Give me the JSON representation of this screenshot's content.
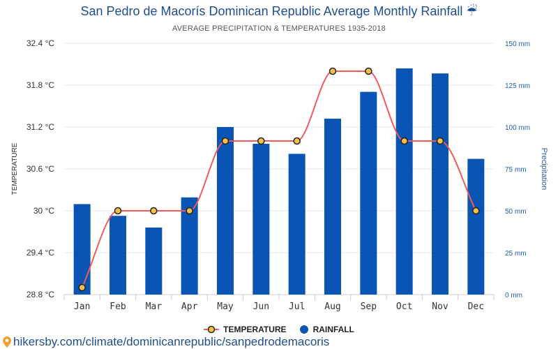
{
  "title": "San Pedro de Macorís Dominican Republic Average Monthly Rainfall ☔",
  "subtitle": "AVERAGE PRECIPITATION & TEMPERATURES 1935-2018",
  "footer_url": "hikersby.com/climate/dominicanrepublic/sanpedrodemacoris",
  "colors": {
    "rain": "#0a55b4",
    "temp_line": "#f05a5a",
    "marker": "#f7c04a",
    "title": "#1f4e8c"
  },
  "chart_data": {
    "type": "bar+line",
    "categories": [
      "Jan",
      "Feb",
      "Mar",
      "Apr",
      "May",
      "Jun",
      "Jul",
      "Aug",
      "Sep",
      "Oct",
      "Nov",
      "Dec"
    ],
    "series": [
      {
        "name": "TEMPERATURE",
        "axis": "left",
        "type": "line",
        "values": [
          28.9,
          30.0,
          30.0,
          30.0,
          31.0,
          31.0,
          31.0,
          32.0,
          32.0,
          31.0,
          31.0,
          30.0
        ]
      },
      {
        "name": "RAINFALL",
        "axis": "right",
        "type": "bar",
        "values": [
          54,
          47,
          40,
          58,
          100,
          90,
          84,
          105,
          121,
          135,
          132,
          81
        ]
      }
    ],
    "ylabel_left": "TEMPERATURE",
    "ylabel_right": "Precipitation",
    "ylim_left": [
      28.8,
      32.4
    ],
    "ylim_right": [
      0,
      150
    ],
    "yticks_left": [
      "28.8 °C",
      "29.4 °C",
      "30 °C",
      "30.6 °C",
      "31.2 °C",
      "31.8 °C",
      "32.4 °C"
    ],
    "yticks_right": [
      "0 mm",
      "25 mm",
      "50 mm",
      "75 mm",
      "100 mm",
      "125 mm",
      "150 mm"
    ],
    "grid": true,
    "legend_position": "bottom"
  }
}
